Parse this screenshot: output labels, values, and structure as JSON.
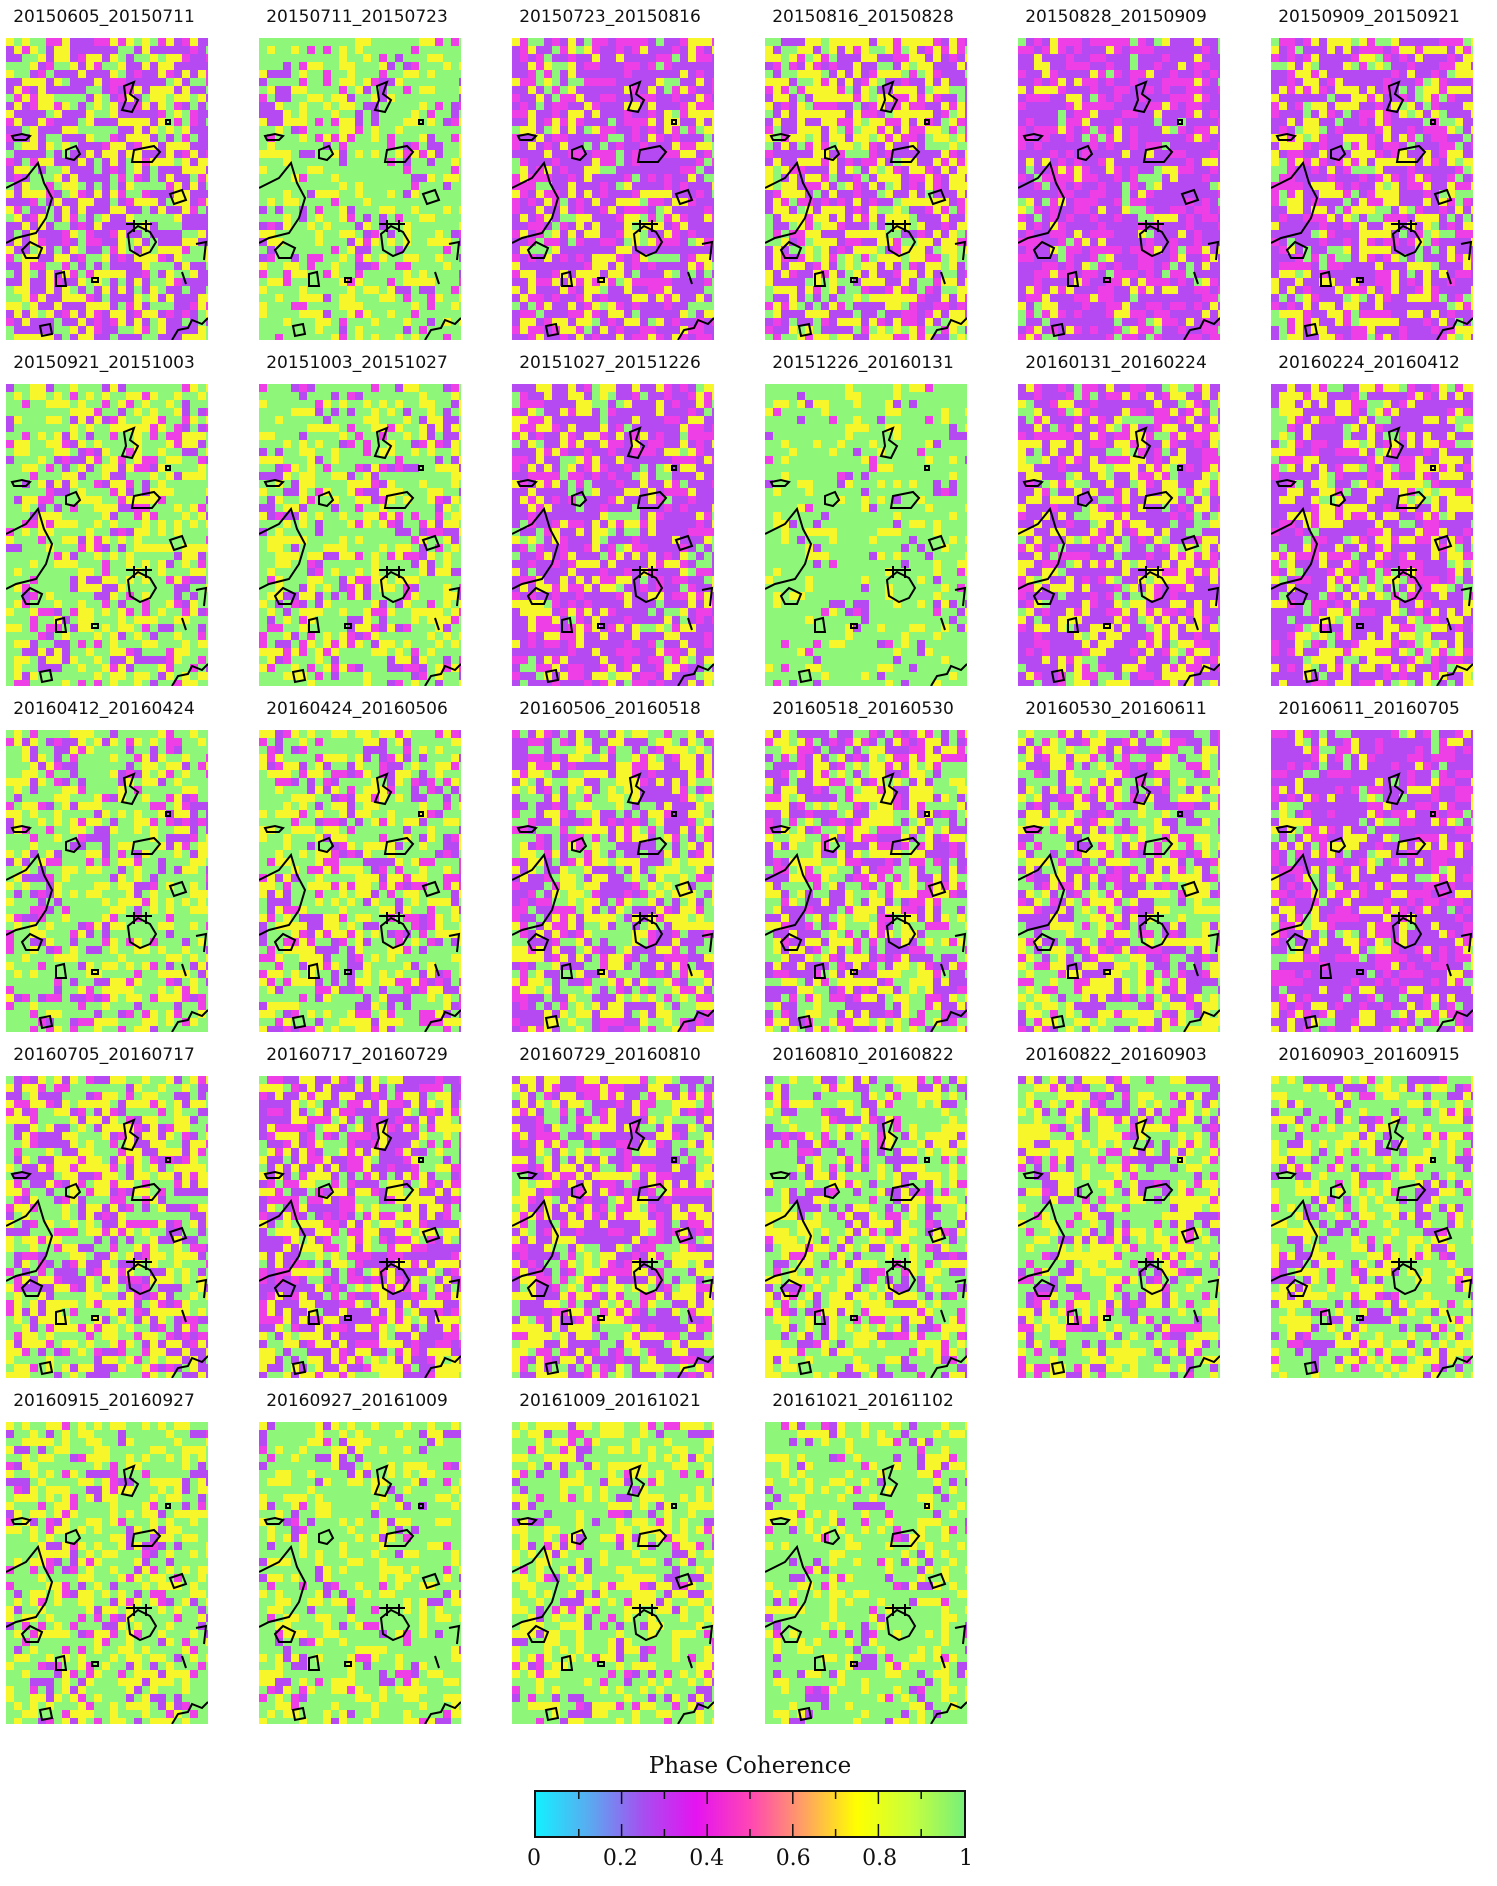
{
  "panels": [
    {
      "label": "20150605_20150711",
      "mix": [
        0.4,
        0.1,
        0.3,
        0.2
      ]
    },
    {
      "label": "20150711_20150723",
      "mix": [
        0.08,
        0.08,
        0.22,
        0.62
      ]
    },
    {
      "label": "20150723_20150816",
      "mix": [
        0.45,
        0.25,
        0.2,
        0.1
      ]
    },
    {
      "label": "20150816_20150828",
      "mix": [
        0.3,
        0.15,
        0.35,
        0.2
      ]
    },
    {
      "label": "20150828_20150909",
      "mix": [
        0.5,
        0.3,
        0.15,
        0.05
      ]
    },
    {
      "label": "20150909_20150921",
      "mix": [
        0.4,
        0.2,
        0.28,
        0.12
      ]
    },
    {
      "label": "20150921_20151003",
      "mix": [
        0.12,
        0.1,
        0.28,
        0.5
      ]
    },
    {
      "label": "20151003_20151027",
      "mix": [
        0.12,
        0.1,
        0.28,
        0.5
      ]
    },
    {
      "label": "20151027_20151226",
      "mix": [
        0.48,
        0.22,
        0.22,
        0.08
      ]
    },
    {
      "label": "20151226_20160131",
      "mix": [
        0.05,
        0.05,
        0.15,
        0.75
      ]
    },
    {
      "label": "20160131_20160224",
      "mix": [
        0.38,
        0.18,
        0.3,
        0.14
      ]
    },
    {
      "label": "20160224_20160412",
      "mix": [
        0.42,
        0.2,
        0.28,
        0.1
      ]
    },
    {
      "label": "20160412_20160424",
      "mix": [
        0.15,
        0.1,
        0.25,
        0.5
      ]
    },
    {
      "label": "20160424_20160506",
      "mix": [
        0.15,
        0.12,
        0.28,
        0.45
      ]
    },
    {
      "label": "20160506_20160518",
      "mix": [
        0.3,
        0.15,
        0.3,
        0.25
      ]
    },
    {
      "label": "20160518_20160530",
      "mix": [
        0.28,
        0.15,
        0.3,
        0.27
      ]
    },
    {
      "label": "20160530_20160611",
      "mix": [
        0.25,
        0.15,
        0.3,
        0.3
      ]
    },
    {
      "label": "20160611_20160705",
      "mix": [
        0.5,
        0.22,
        0.2,
        0.08
      ]
    },
    {
      "label": "20160705_20160717",
      "mix": [
        0.22,
        0.12,
        0.33,
        0.33
      ]
    },
    {
      "label": "20160717_20160729",
      "mix": [
        0.35,
        0.2,
        0.28,
        0.17
      ]
    },
    {
      "label": "20160729_20160810",
      "mix": [
        0.35,
        0.2,
        0.28,
        0.17
      ]
    },
    {
      "label": "20160810_20160822",
      "mix": [
        0.18,
        0.1,
        0.32,
        0.4
      ]
    },
    {
      "label": "20160822_20160903",
      "mix": [
        0.18,
        0.1,
        0.3,
        0.42
      ]
    },
    {
      "label": "20160903_20160915",
      "mix": [
        0.14,
        0.08,
        0.28,
        0.5
      ]
    },
    {
      "label": "20160915_20160927",
      "mix": [
        0.1,
        0.08,
        0.3,
        0.52
      ]
    },
    {
      "label": "20160927_20161009",
      "mix": [
        0.08,
        0.06,
        0.26,
        0.6
      ]
    },
    {
      "label": "20161009_20161021",
      "mix": [
        0.1,
        0.08,
        0.32,
        0.5
      ]
    },
    {
      "label": "20161021_20161102",
      "mix": [
        0.06,
        0.06,
        0.24,
        0.64
      ]
    }
  ],
  "palette_roles": [
    "#b64af2",
    "#ee3fe6",
    "#f6f62a",
    "#8ef77a"
  ],
  "legend": {
    "title": "Phase Coherence",
    "colormap": [
      "#14f0ff",
      "#5aaaf0",
      "#a64ff0",
      "#e414f0",
      "#ff46b4",
      "#ffa064",
      "#ffff00",
      "#c8ff3c",
      "#78f078"
    ],
    "tick_labels": [
      "0",
      "0.2",
      "0.4",
      "0.6",
      "0.8",
      "1"
    ],
    "range": [
      0,
      1
    ]
  }
}
